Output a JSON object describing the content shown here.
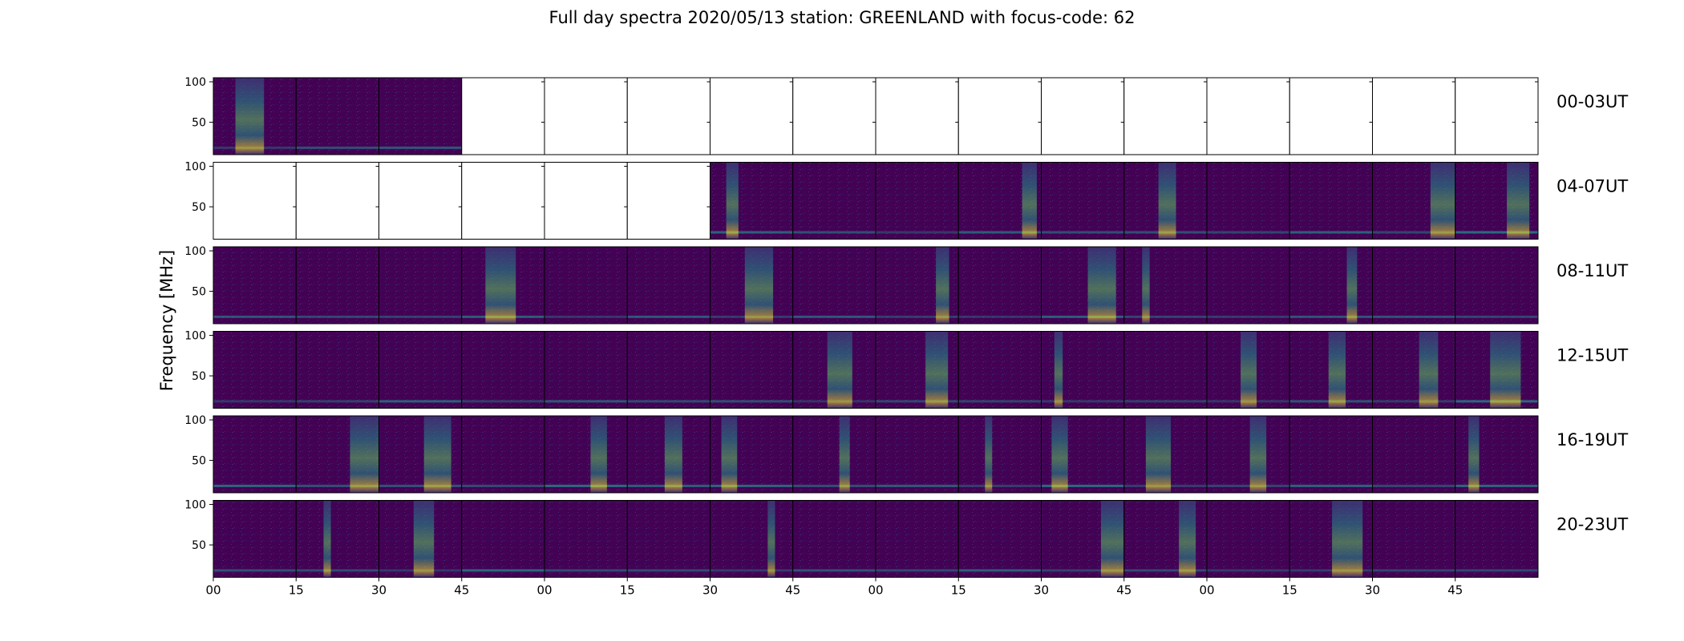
{
  "chart_data": {
    "type": "heatmap",
    "title": "Full day spectra 2020/05/13 station: GREENLAND with focus-code: 62",
    "ylabel": "Frequency [MHz]",
    "xlabel": "",
    "ylim": [
      10,
      105
    ],
    "yticks": [
      50,
      100
    ],
    "xtick_labels": [
      "00",
      "15",
      "30",
      "45",
      "00",
      "15",
      "30",
      "45",
      "00",
      "15",
      "30",
      "45",
      "00",
      "15",
      "30",
      "45"
    ],
    "rows": [
      {
        "label": "00-03UT",
        "panels": [
          "d",
          "d",
          "d",
          "e",
          "e",
          "e",
          "e",
          "e",
          "e",
          "e",
          "e",
          "e",
          "e",
          "e",
          "e",
          "e"
        ]
      },
      {
        "label": "04-07UT",
        "panels": [
          "e",
          "e",
          "e",
          "e",
          "e",
          "e",
          "d",
          "d",
          "d",
          "d",
          "d",
          "d",
          "d",
          "d",
          "d",
          "d"
        ]
      },
      {
        "label": "08-11UT",
        "panels": [
          "d",
          "d",
          "d",
          "d",
          "d",
          "d",
          "d",
          "d",
          "d",
          "d",
          "d",
          "d",
          "d",
          "d",
          "d",
          "d"
        ]
      },
      {
        "label": "12-15UT",
        "panels": [
          "d",
          "d",
          "d",
          "d",
          "d",
          "d",
          "d",
          "d",
          "d",
          "d",
          "d",
          "d",
          "d",
          "d",
          "d",
          "d"
        ]
      },
      {
        "label": "16-19UT",
        "panels": [
          "d",
          "d",
          "d",
          "d",
          "d",
          "d",
          "d",
          "d",
          "d",
          "d",
          "d",
          "d",
          "d",
          "d",
          "d",
          "d"
        ]
      },
      {
        "label": "20-23UT",
        "panels": [
          "d",
          "d",
          "d",
          "d",
          "d",
          "d",
          "d",
          "d",
          "d",
          "d",
          "d",
          "d",
          "d",
          "d",
          "d",
          "d"
        ]
      }
    ],
    "colormap": [
      "#440154",
      "#3b528b",
      "#21918c",
      "#5ec962",
      "#fde725"
    ],
    "grid": false
  }
}
